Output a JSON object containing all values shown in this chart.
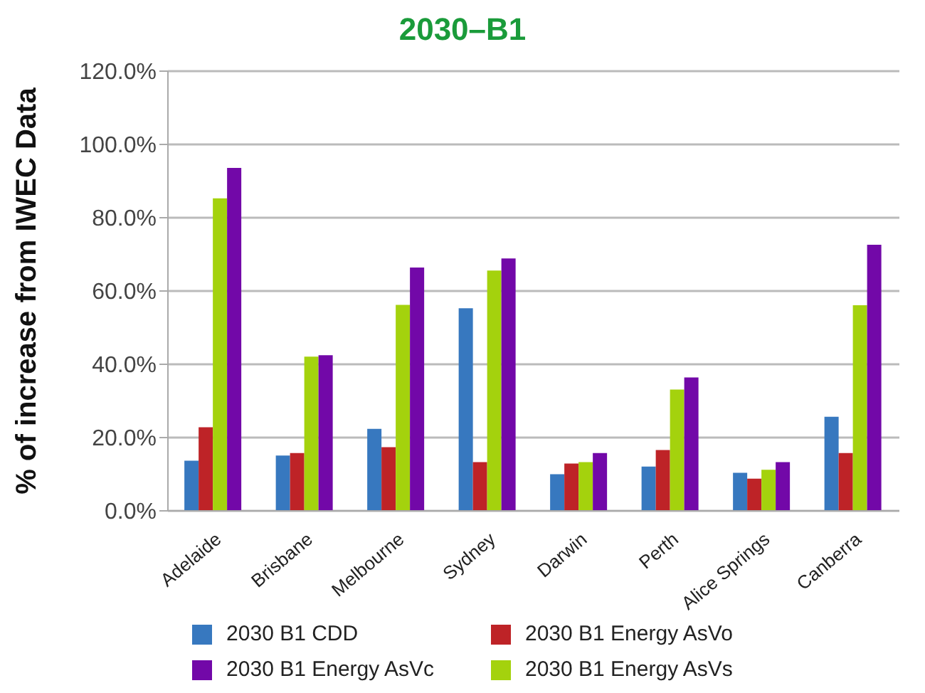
{
  "chart_data": {
    "type": "bar",
    "title": "2030–B1",
    "ylabel": "% of increase from IWEC Data",
    "categories": [
      "Adelaide",
      "Brisbane",
      "Melbourne",
      "Sydney",
      "Darwin",
      "Perth",
      "Alice Springs",
      "Canberra"
    ],
    "series": [
      {
        "name": "2030 B1 CDD",
        "color": "#3778bf",
        "values": [
          13.7,
          15.1,
          22.4,
          55.3,
          10.0,
          12.1,
          10.4,
          25.7
        ]
      },
      {
        "name": "2030 B1 Energy AsVo",
        "color": "#be2327",
        "values": [
          22.8,
          15.8,
          17.4,
          13.3,
          12.9,
          16.6,
          8.8,
          15.8
        ]
      },
      {
        "name": "2030 B1 Energy AsVs",
        "color": "#a4d20d",
        "values": [
          85.3,
          42.1,
          56.2,
          65.6,
          13.3,
          33.1,
          11.2,
          56.1
        ]
      },
      {
        "name": "2030 B1 Energy AsVc",
        "color": "#7208a8",
        "values": [
          93.6,
          42.5,
          66.4,
          68.9,
          15.8,
          36.4,
          13.3,
          72.6
        ]
      }
    ],
    "ylim": [
      0,
      120
    ],
    "yticks": [
      {
        "value": 0,
        "label": "0.0%"
      },
      {
        "value": 20,
        "label": "20.0%"
      },
      {
        "value": 40,
        "label": "40.0%"
      },
      {
        "value": 60,
        "label": "60.0%"
      },
      {
        "value": 80,
        "label": "80.0%"
      },
      {
        "value": 100,
        "label": "100.0%"
      },
      {
        "value": 120,
        "label": "120.0%"
      }
    ],
    "grid": "y",
    "legend": "bottom"
  }
}
